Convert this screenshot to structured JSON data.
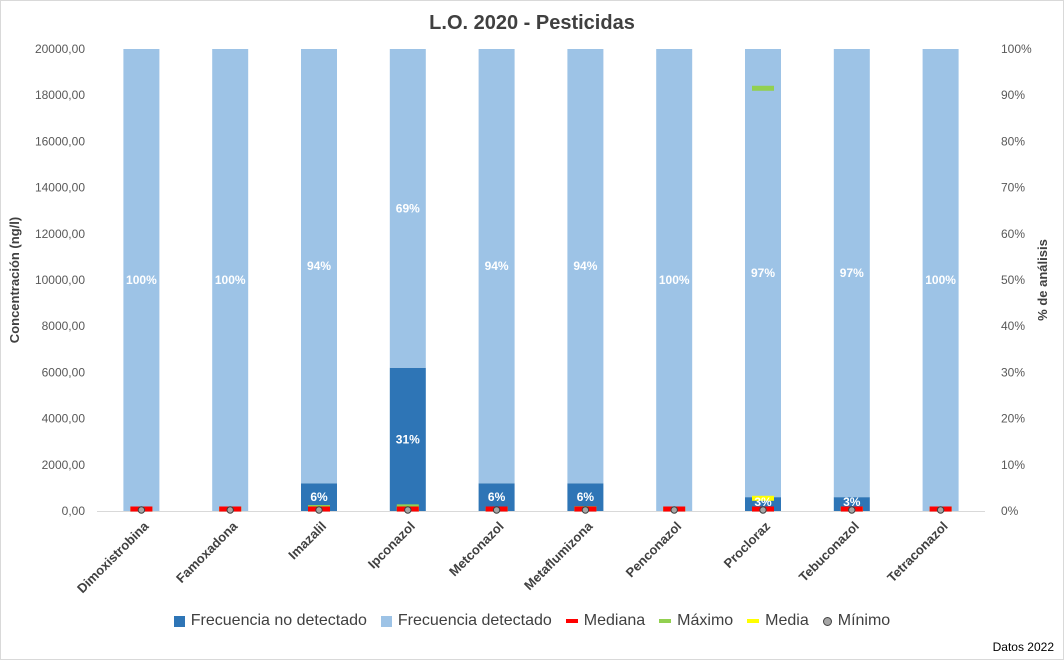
{
  "chart_data": {
    "type": "bar",
    "title": "L.O. 2020 - Pesticidas",
    "ylabel": "Concentración (ng/l)",
    "y2label": "% de análisis",
    "ylim": [
      0,
      20000
    ],
    "y2lim": [
      0,
      100
    ],
    "yticks": [
      "0,00",
      "2000,00",
      "4000,00",
      "6000,00",
      "8000,00",
      "10000,00",
      "12000,00",
      "14000,00",
      "16000,00",
      "18000,00",
      "20000,00"
    ],
    "y2ticks": [
      "0%",
      "10%",
      "20%",
      "30%",
      "40%",
      "50%",
      "60%",
      "70%",
      "80%",
      "90%",
      "100%"
    ],
    "categories": [
      "Dimoxistrobina",
      "Famoxadona",
      "Imazalil",
      "Ipconazol",
      "Metconazol",
      "Metaflumizona",
      "Penconazol",
      "Procloraz",
      "Tebuconazol",
      "Tetraconazol"
    ],
    "series": [
      {
        "name": "Frecuencia no detectado",
        "axis": "secondary",
        "stack": true,
        "color": "#2e75b6",
        "values": [
          0,
          0,
          6,
          31,
          6,
          6,
          0,
          3,
          3,
          0
        ],
        "labels": [
          "",
          "",
          "6%",
          "31%",
          "6%",
          "6%",
          "",
          "3%",
          "3%",
          ""
        ]
      },
      {
        "name": "Frecuencia detectado",
        "axis": "secondary",
        "stack": true,
        "color": "#9dc3e6",
        "values": [
          100,
          100,
          94,
          69,
          94,
          94,
          100,
          97,
          97,
          100
        ],
        "labels": [
          "100%",
          "100%",
          "94%",
          "69%",
          "94%",
          "94%",
          "100%",
          "97%",
          "97%",
          "100%"
        ]
      },
      {
        "name": "Mediana",
        "axis": "primary",
        "marker": "dash",
        "color": "#ff0000",
        "values": [
          0,
          0,
          0,
          0,
          0,
          0,
          0,
          0,
          0,
          0
        ]
      },
      {
        "name": "Máximo",
        "axis": "primary",
        "marker": "dash",
        "color": "#92d050",
        "values": [
          0,
          0,
          150,
          180,
          0,
          100,
          0,
          18300,
          0,
          0
        ]
      },
      {
        "name": "Media",
        "axis": "primary",
        "marker": "dash",
        "color": "#ffff00",
        "values": [
          0,
          0,
          0,
          0,
          0,
          0,
          0,
          550,
          0,
          0
        ]
      },
      {
        "name": "Mínimo",
        "axis": "primary",
        "marker": "dot",
        "color": "#a6a6a6",
        "values": [
          0,
          0,
          0,
          0,
          0,
          0,
          0,
          0,
          0,
          0
        ]
      }
    ]
  },
  "footer": {
    "note": "Datos 2022"
  },
  "legend": [
    {
      "label": "Frecuencia no detectado",
      "shape": "square",
      "color": "#2e75b6"
    },
    {
      "label": "Frecuencia detectado",
      "shape": "square",
      "color": "#9dc3e6"
    },
    {
      "label": "Mediana",
      "shape": "line",
      "color": "#ff0000"
    },
    {
      "label": "Máximo",
      "shape": "line",
      "color": "#92d050"
    },
    {
      "label": "Media",
      "shape": "line",
      "color": "#ffff00"
    },
    {
      "label": "Mínimo",
      "shape": "dot",
      "color": "#a6a6a6"
    }
  ]
}
